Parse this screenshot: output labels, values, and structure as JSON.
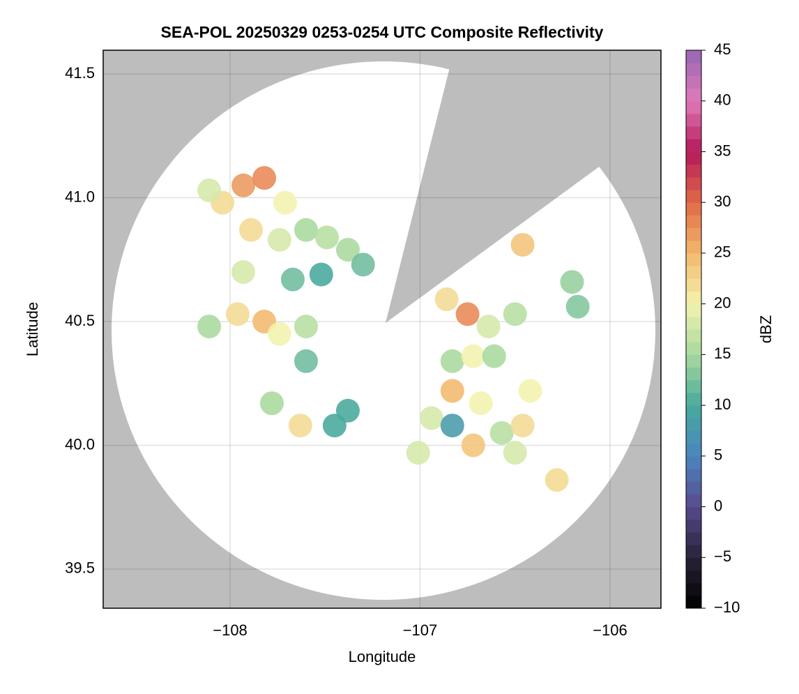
{
  "chart_data": {
    "type": "scatter",
    "title": "SEA-POL 20250329 0253-0254 UTC Composite Reflectivity",
    "xlabel": "Longitude",
    "ylabel": "Latitude",
    "clabel": "dBZ",
    "xlim": [
      -108.668,
      -105.732
    ],
    "ylim": [
      39.342,
      41.596
    ],
    "xticks": [
      {
        "value": -108,
        "label": "−108"
      },
      {
        "value": -107,
        "label": "−107"
      },
      {
        "value": -106,
        "label": "−106"
      }
    ],
    "yticks": [
      {
        "value": 39.5,
        "label": "39.5"
      },
      {
        "value": 40,
        "label": "40.0"
      },
      {
        "value": 40.5,
        "label": "40.5"
      },
      {
        "value": 41,
        "label": "41.0"
      },
      {
        "value": 41.5,
        "label": "41.5"
      }
    ],
    "clim": [
      -10,
      45
    ],
    "cticks": [
      {
        "value": -10,
        "label": "−10"
      },
      {
        "value": -5,
        "label": "−5"
      },
      0,
      5,
      10,
      15,
      20,
      25,
      30,
      35,
      40,
      45
    ],
    "colormap": [
      "#000000",
      "#2a2238",
      "#584a8c",
      "#4a86c0",
      "#48a99c",
      "#a8d99e",
      "#f3f2ae",
      "#f3b86c",
      "#e06a46",
      "#b4195a",
      "#e07ab8",
      "#9466b4"
    ],
    "grid": true,
    "x": [
      -107.93,
      -107.82,
      -108.04,
      -108.11,
      -107.71,
      -107.89,
      -107.74,
      -107.6,
      -107.49,
      -107.38,
      -107.3,
      -107.52,
      -107.67,
      -107.93,
      -107.82,
      -107.96,
      -107.74,
      -107.6,
      -108.11,
      -107.6,
      -107.78,
      -107.63,
      -107.45,
      -107.38,
      -106.46,
      -106.2,
      -106.17,
      -106.75,
      -106.86,
      -106.64,
      -106.5,
      -106.83,
      -106.72,
      -106.83,
      -106.68,
      -106.94,
      -106.83,
      -106.72,
      -107.01,
      -106.57,
      -106.46,
      -106.42,
      -106.5,
      -106.28,
      -106.61
    ],
    "y": [
      41.05,
      41.08,
      40.98,
      41.03,
      40.98,
      40.87,
      40.83,
      40.87,
      40.84,
      40.79,
      40.73,
      40.69,
      40.67,
      40.7,
      40.5,
      40.53,
      40.45,
      40.48,
      40.48,
      40.34,
      40.17,
      40.08,
      40.08,
      40.14,
      40.81,
      40.66,
      40.56,
      40.53,
      40.59,
      40.48,
      40.53,
      40.34,
      40.36,
      40.22,
      40.17,
      40.11,
      40.08,
      40.0,
      39.97,
      40.05,
      40.08,
      40.22,
      39.97,
      39.86,
      40.36
    ],
    "values": [
      27,
      28,
      22,
      18,
      20,
      22,
      18,
      15,
      16,
      15,
      12,
      10,
      12,
      18,
      25,
      22,
      20,
      16,
      15,
      12,
      15,
      22,
      10,
      10,
      24,
      14,
      13,
      28,
      22,
      18,
      16,
      15,
      20,
      25,
      20,
      18,
      8,
      24,
      18,
      16,
      22,
      20,
      18,
      22,
      15
    ]
  }
}
